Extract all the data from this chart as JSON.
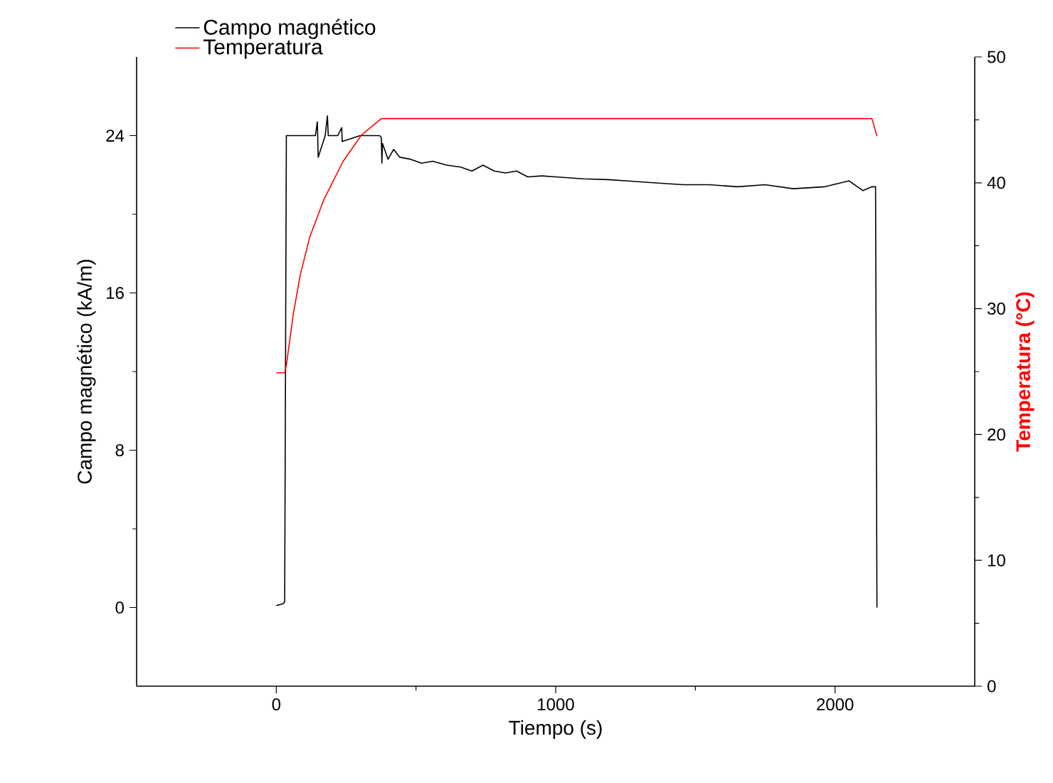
{
  "chart_data": {
    "type": "line",
    "xlabel": "Tiempo (s)",
    "ylabel": "Campo magnético (kA/m)",
    "y2label": "Temperatura (°C)",
    "xlim": [
      -500,
      2500
    ],
    "xticks": [
      0,
      1000,
      2000
    ],
    "ylim": [
      -4,
      28
    ],
    "yticks": [
      0,
      8,
      16,
      24
    ],
    "y2lim": [
      0,
      50
    ],
    "y2ticks": [
      0,
      10,
      20,
      30,
      40,
      50
    ],
    "legend": "top left",
    "grid": false,
    "marker": "none",
    "line_style": "solid",
    "series": [
      {
        "name": "Campo magnético",
        "color": "#000000",
        "x": [
          0,
          25,
          30,
          36,
          60,
          100,
          140,
          147,
          150,
          175,
          183,
          186,
          220,
          234,
          236,
          300,
          370,
          376,
          378,
          380,
          400,
          420,
          442,
          480,
          520,
          560,
          610,
          660,
          700,
          740,
          780,
          820,
          860,
          900,
          950,
          1000,
          1100,
          1188,
          1250,
          1350,
          1457,
          1550,
          1650,
          1750,
          1850,
          1964,
          2050,
          2100,
          2132,
          2145,
          2150
        ],
        "values": [
          0.1,
          0.2,
          0.3,
          24.0,
          24.0,
          24.0,
          24.0,
          24.7,
          22.9,
          24.0,
          25.0,
          24.0,
          24.0,
          24.4,
          23.7,
          24.0,
          24.0,
          23.9,
          22.6,
          23.6,
          22.8,
          23.3,
          22.9,
          22.8,
          22.6,
          22.7,
          22.5,
          22.4,
          22.2,
          22.5,
          22.2,
          22.1,
          22.2,
          21.9,
          21.95,
          21.9,
          21.8,
          21.76,
          21.7,
          21.6,
          21.5,
          21.5,
          21.4,
          21.5,
          21.3,
          21.4,
          21.7,
          21.2,
          21.4,
          21.4,
          0.0
        ]
      },
      {
        "name": "Temperatura",
        "color": "#ff0000",
        "axis": "y2",
        "x": [
          0,
          30,
          36,
          61,
          86,
          120,
          171,
          239,
          305,
          376,
          2132,
          2150
        ],
        "values": [
          24.9,
          24.9,
          25.5,
          29.6,
          32.7,
          35.7,
          38.7,
          41.7,
          43.8,
          45.1,
          45.1,
          43.7
        ]
      }
    ]
  }
}
